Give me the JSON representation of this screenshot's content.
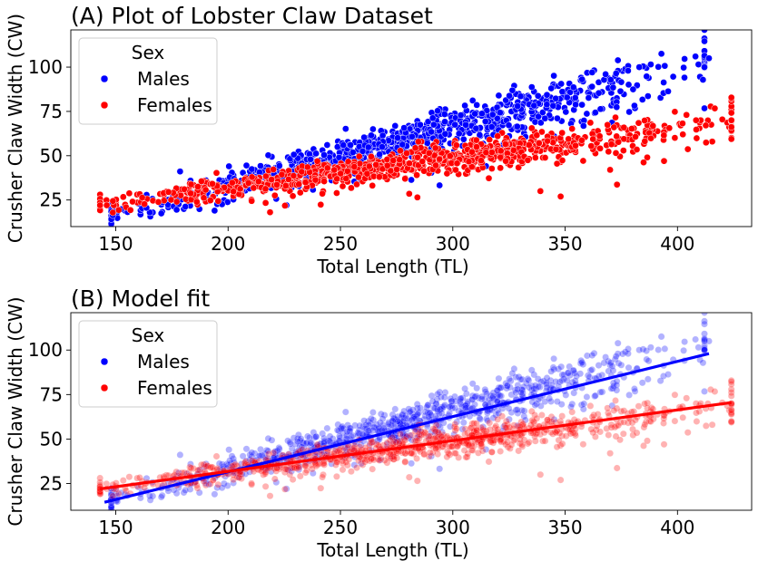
{
  "chart_data": [
    {
      "type": "scatter",
      "title": "(A) Plot of Lobster Claw Dataset",
      "xlabel": "Total Length (TL)",
      "ylabel": "Crusher Claw Width (CW)",
      "xlim": [
        130,
        433
      ],
      "ylim": [
        10,
        121
      ],
      "xticks": [
        150,
        200,
        250,
        300,
        350,
        400
      ],
      "yticks": [
        25,
        50,
        75,
        100
      ],
      "grid": false,
      "legend": {
        "title": "Sex",
        "placement": "top-left",
        "entries": [
          "Males",
          "Females"
        ]
      },
      "series": [
        {
          "name": "Males",
          "color": "#0000ff",
          "opacity": 1.0,
          "trend": {
            "slope": 0.325,
            "intercept": -32.0,
            "noise": 6.0,
            "xrange": [
              148,
              412
            ],
            "n": 900,
            "seed": 11
          },
          "extra_points": [
            [
              408,
              106
            ],
            [
              414,
              105
            ],
            [
              383,
              100
            ],
            [
              362,
              97
            ],
            [
              368,
              96
            ],
            [
              378,
              98
            ],
            [
              194,
              19
            ],
            [
              226,
              22
            ],
            [
              160,
              23
            ],
            [
              150,
              22
            ]
          ]
        },
        {
          "name": "Females",
          "color": "#ff0000",
          "opacity": 1.0,
          "trend": {
            "slope": 0.171,
            "intercept": -2.5,
            "noise": 4.5,
            "xrange": [
              143,
              424
            ],
            "n": 900,
            "seed": 29
          },
          "extra_points": [
            [
              424,
              70
            ],
            [
              404,
              73
            ],
            [
              394,
              47
            ],
            [
              370,
              42
            ],
            [
              348,
              27
            ],
            [
              339,
              30
            ],
            [
              143,
              22
            ],
            [
              146,
              22
            ]
          ]
        }
      ]
    },
    {
      "type": "scatter",
      "title": "(B) Model fit",
      "xlabel": "Total Length (TL)",
      "ylabel": "Crusher Claw Width (CW)",
      "xlim": [
        130,
        433
      ],
      "ylim": [
        10,
        121
      ],
      "xticks": [
        150,
        200,
        250,
        300,
        350,
        400
      ],
      "yticks": [
        25,
        50,
        75,
        100
      ],
      "grid": false,
      "legend": {
        "title": "Sex",
        "placement": "top-left",
        "entries": [
          "Males",
          "Females"
        ]
      },
      "series": [
        {
          "name": "Males",
          "color": "#0000ff",
          "opacity": 0.3,
          "trend": {
            "slope": 0.325,
            "intercept": -32.0,
            "noise": 6.0,
            "xrange": [
              148,
              412
            ],
            "n": 900,
            "seed": 11
          },
          "extra_points": [
            [
              408,
              106
            ],
            [
              414,
              105
            ],
            [
              383,
              100
            ],
            [
              362,
              97
            ],
            [
              368,
              96
            ],
            [
              378,
              98
            ],
            [
              194,
              19
            ],
            [
              226,
              22
            ],
            [
              160,
              23
            ],
            [
              150,
              22
            ]
          ]
        },
        {
          "name": "Females",
          "color": "#ff0000",
          "opacity": 0.3,
          "trend": {
            "slope": 0.171,
            "intercept": -2.5,
            "noise": 4.5,
            "xrange": [
              143,
              424
            ],
            "n": 900,
            "seed": 29
          },
          "extra_points": [
            [
              424,
              70
            ],
            [
              404,
              73
            ],
            [
              394,
              47
            ],
            [
              370,
              42
            ],
            [
              348,
              27
            ],
            [
              339,
              30
            ],
            [
              143,
              22
            ],
            [
              146,
              22
            ]
          ]
        }
      ],
      "fit_lines": [
        {
          "name": "Males",
          "color": "#0000ff",
          "x": [
            145,
            414
          ],
          "y": [
            14.5,
            98
          ]
        },
        {
          "name": "Females",
          "color": "#ff0000",
          "x": [
            143,
            424
          ],
          "y": [
            22,
            70.5
          ]
        }
      ]
    }
  ]
}
